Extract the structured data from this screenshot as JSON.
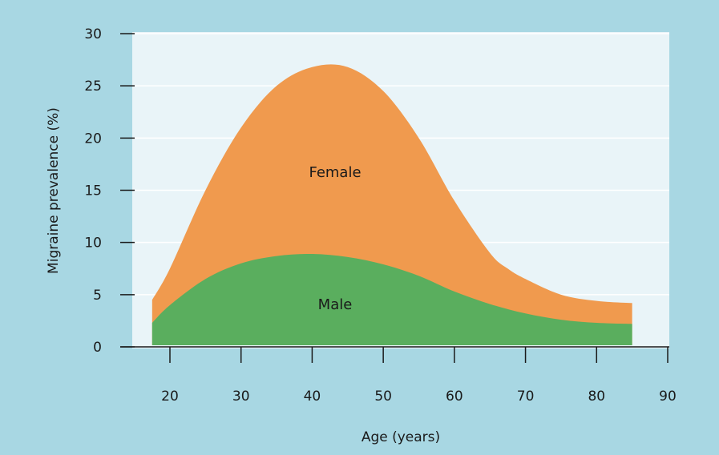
{
  "chart_data": {
    "type": "area",
    "title": "",
    "xlabel": "Age (years)",
    "ylabel": "Migraine prevalence (%)",
    "xlim": [
      15,
      90
    ],
    "ylim": [
      0,
      30
    ],
    "x_ticks": [
      20,
      30,
      40,
      50,
      60,
      70,
      80,
      90
    ],
    "y_ticks": [
      0,
      5,
      10,
      15,
      20,
      25,
      30
    ],
    "grid": "horizontal",
    "stacked": false,
    "series": [
      {
        "name": "Female",
        "color": "#f09a4e",
        "x": [
          17.5,
          20,
          25,
          30,
          35,
          40,
          45,
          50,
          55,
          60,
          65,
          67.5,
          70,
          75,
          80,
          85
        ],
        "y": [
          4.5,
          7.5,
          15,
          21,
          25,
          26.8,
          26.8,
          24.5,
          20,
          14,
          9,
          7.5,
          6.5,
          5,
          4.4,
          4.2
        ]
      },
      {
        "name": "Male",
        "color": "#5aae5e",
        "x": [
          17.5,
          20,
          25,
          30,
          35,
          40,
          45,
          50,
          55,
          60,
          65,
          70,
          75,
          80,
          85
        ],
        "y": [
          2.3,
          4,
          6.5,
          8,
          8.7,
          8.9,
          8.6,
          7.9,
          6.8,
          5.3,
          4.1,
          3.2,
          2.6,
          2.3,
          2.2
        ]
      }
    ]
  }
}
